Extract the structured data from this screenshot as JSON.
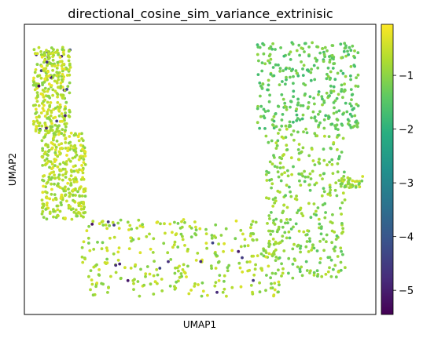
{
  "chart_data": {
    "type": "scatter",
    "title": "directional_cosine_sim_variance_extrinisic",
    "xlabel": "UMAP1",
    "ylabel": "UMAP2",
    "x_ticks_shown": false,
    "y_ticks_shown": false,
    "grid": false,
    "colormap": "viridis",
    "colorbar": {
      "range": [
        -5.45,
        -0.05
      ],
      "ticks": [
        -1,
        -2,
        -3,
        -4,
        -5
      ],
      "tick_labels": [
        "−1",
        "−2",
        "−3",
        "−4",
        "−5"
      ]
    },
    "clusters": [
      {
        "region": "upper-left lobe",
        "x_range": [
          -8.6,
          -6.9
        ],
        "y_range": [
          3.8,
          7.6
        ],
        "typical_value": -0.2,
        "dark_points_present": true
      },
      {
        "region": "left arm",
        "x_range": [
          -8.2,
          -6.2
        ],
        "y_range": [
          0.0,
          3.8
        ],
        "typical_value": -0.2
      },
      {
        "region": "bottom arc",
        "x_range": [
          -6.4,
          2.6
        ],
        "y_range": [
          -3.4,
          0.0
        ],
        "typical_value": -0.3,
        "dark_points_present": true
      },
      {
        "region": "right arm",
        "x_range": [
          2.0,
          5.6
        ],
        "y_range": [
          -2.6,
          4.0
        ],
        "typical_value": -0.6
      },
      {
        "region": "upper-right lobes",
        "x_range": [
          1.6,
          6.2
        ],
        "y_range": [
          4.0,
          7.8
        ],
        "typical_value": -0.9
      },
      {
        "region": "right tail",
        "x_range": [
          5.4,
          6.4
        ],
        "y_range": [
          1.4,
          1.9
        ],
        "typical_value": -0.4
      }
    ]
  }
}
